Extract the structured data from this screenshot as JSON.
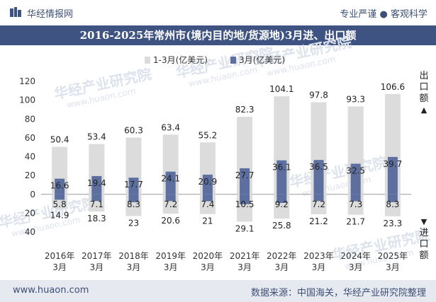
{
  "header": {
    "brand": "华经情报网",
    "tagline": "专业严谨 ● 客观科学",
    "title": "2016-2025年常州市(境内目的地/货源地)3月进、出口额"
  },
  "watermark": {
    "text": "华经产业研究院",
    "url": "www.huaon.com"
  },
  "side_labels": {
    "export": "出口额",
    "import": "进口额"
  },
  "footer": {
    "website": "www.huaon.com",
    "source": "数据来源：中国海关，华经产业研究院整理"
  },
  "chart_data": {
    "type": "bar",
    "categories": [
      "2016年3月",
      "2017年3月",
      "2018年3月",
      "2019年3月",
      "2020年3月",
      "2021年3月",
      "2022年3月",
      "2023年3月",
      "2024年3月",
      "2025年3月"
    ],
    "category_lines": [
      [
        "2016年",
        "3月"
      ],
      [
        "2017年",
        "3月"
      ],
      [
        "2018年",
        "3月"
      ],
      [
        "2019年",
        "3月"
      ],
      [
        "2020年",
        "3月"
      ],
      [
        "2021年",
        "3月"
      ],
      [
        "2022年",
        "3月"
      ],
      [
        "2023年",
        "3月"
      ],
      [
        "2024年",
        "3月"
      ],
      [
        "2025年",
        "3月"
      ]
    ],
    "ylim": [
      -40,
      120
    ],
    "yticks": [
      -40,
      -20,
      0,
      20,
      40,
      60,
      80,
      100,
      120
    ],
    "ytick_labels": [
      "40",
      "20",
      "0",
      "20",
      "40",
      "60",
      "80",
      "100",
      "120"
    ],
    "legend": [
      "1-3月(亿美元)",
      "3月(亿美元)"
    ],
    "legend_position": "top-center",
    "colors": {
      "cumulative": "#dcdcdc",
      "monthly": "#5d6f9e"
    },
    "series": [
      {
        "name": "1-3月(亿美元)",
        "export": [
          50.4,
          53.4,
          60.3,
          63.4,
          55.2,
          82.3,
          104.1,
          97.8,
          93.3,
          106.6
        ],
        "import": [
          14.9,
          18.3,
          23,
          20.6,
          21,
          29.1,
          25.8,
          21.2,
          21.7,
          23.3
        ]
      },
      {
        "name": "3月(亿美元)",
        "export": [
          16.6,
          19.4,
          17.7,
          24.1,
          20.9,
          27.7,
          36.1,
          36.5,
          32.5,
          39.7
        ],
        "import": [
          5.8,
          7.1,
          8.3,
          7.2,
          7.4,
          10.5,
          9.2,
          7.2,
          7.3,
          8.3
        ]
      }
    ]
  }
}
